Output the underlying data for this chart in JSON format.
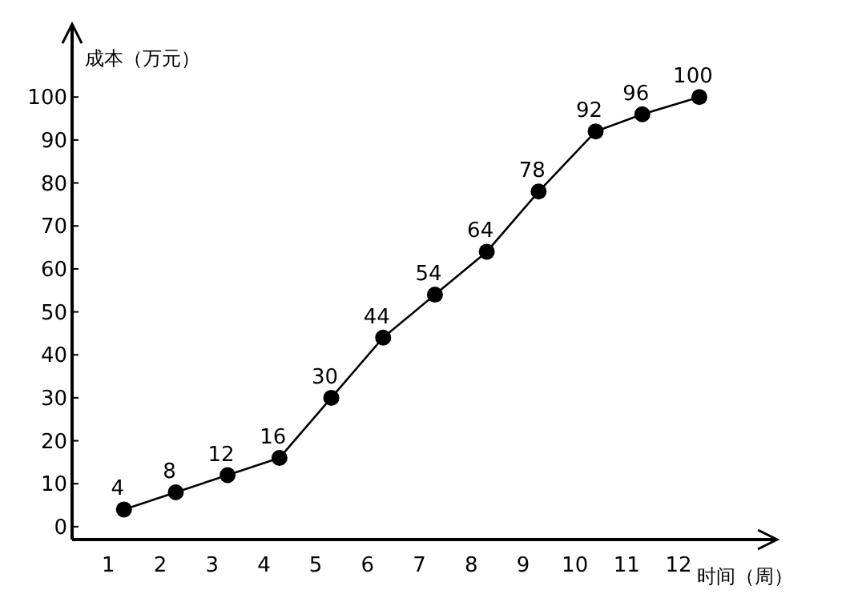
{
  "chart_data": {
    "type": "line",
    "xlabel": "时间（周）",
    "ylabel": "成本（万元）",
    "x": [
      1.3,
      2.3,
      3.3,
      4.3,
      5.3,
      6.3,
      7.3,
      8.3,
      9.3,
      10.4,
      11.3,
      12.4
    ],
    "values": [
      4,
      8,
      12,
      16,
      30,
      44,
      54,
      64,
      78,
      92,
      96,
      100
    ],
    "color": "#000000",
    "marker": "circle",
    "line_style": "solid",
    "data_labels": true,
    "xlim": [
      0.3,
      13.9
    ],
    "ylim": [
      -3,
      117
    ],
    "xticks": [
      1,
      2,
      3,
      4,
      5,
      6,
      7,
      8,
      9,
      10,
      11,
      12
    ],
    "yticks": [
      0,
      10,
      20,
      30,
      40,
      50,
      60,
      70,
      80,
      90,
      100
    ]
  }
}
